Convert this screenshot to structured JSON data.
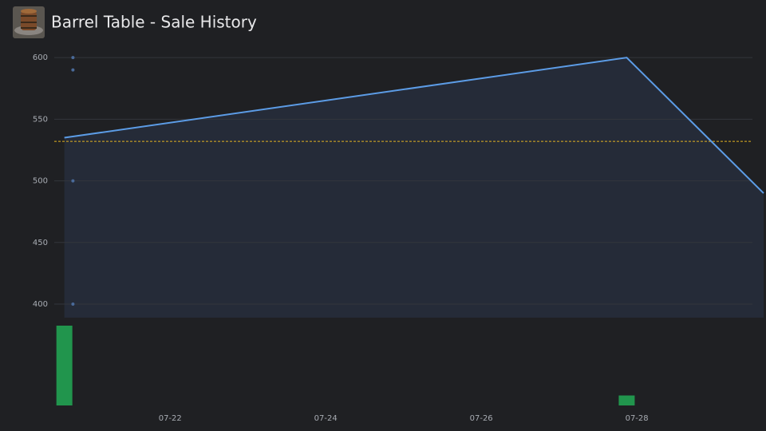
{
  "chart_data": {
    "type": "line",
    "title": "Barrel Table - Sale History",
    "x": [
      20.64,
      27.87,
      29.63
    ],
    "values": [
      535,
      600,
      490
    ],
    "color": "#5c9ce6",
    "xlim": [
      20.51,
      29.63
    ],
    "xticks": [
      {
        "value": 22,
        "label": "07-22"
      },
      {
        "value": 24,
        "label": "07-24"
      },
      {
        "value": 26,
        "label": "07-26"
      },
      {
        "value": 28,
        "label": "07-28"
      }
    ],
    "ylim": [
      389,
      604
    ],
    "yticks": [
      400,
      450,
      500,
      550,
      600
    ],
    "grid": true,
    "average": 532,
    "average_color": "#e3b321",
    "sales": {
      "x": [
        20.75,
        20.75,
        20.75,
        20.75
      ],
      "values": [
        600,
        590,
        500,
        400
      ],
      "color": "#4a6a99"
    },
    "volume": {
      "x": [
        20.64,
        27.87
      ],
      "values": [
        8,
        1
      ],
      "ylim": [
        0,
        8
      ],
      "color": "#21954d"
    }
  }
}
